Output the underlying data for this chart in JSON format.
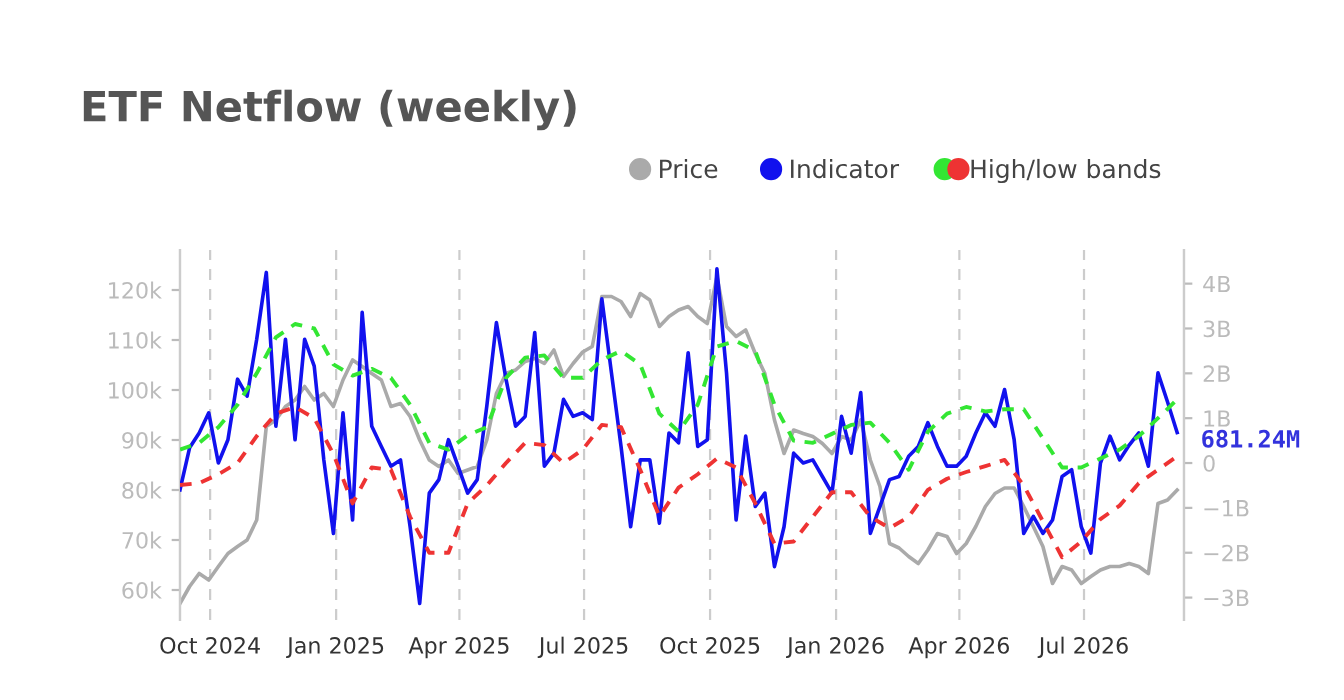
{
  "chart_data": {
    "type": "line",
    "title": "ETF Netflow (weekly)",
    "x": [
      "2024-09-09",
      "2024-09-16",
      "2024-09-23",
      "2024-09-30",
      "2024-10-07",
      "2024-10-14",
      "2024-10-21",
      "2024-10-28",
      "2024-11-04",
      "2024-11-11",
      "2024-11-18",
      "2024-11-25",
      "2024-12-02",
      "2024-12-09",
      "2024-12-16",
      "2024-12-23",
      "2024-12-30",
      "2025-01-06",
      "2025-01-13",
      "2025-01-20",
      "2025-01-27",
      "2025-02-03",
      "2025-02-10",
      "2025-02-17",
      "2025-02-24",
      "2025-03-03",
      "2025-03-10",
      "2025-03-17",
      "2025-03-24",
      "2025-03-31",
      "2025-04-07",
      "2025-04-14",
      "2025-04-21",
      "2025-04-28",
      "2025-05-05",
      "2025-05-12",
      "2025-05-19",
      "2025-05-26",
      "2025-06-02",
      "2025-06-09",
      "2025-06-16",
      "2025-06-23",
      "2025-06-30",
      "2025-07-07",
      "2025-07-14",
      "2025-07-21",
      "2025-07-28",
      "2025-08-04",
      "2025-08-11",
      "2025-08-18",
      "2025-08-25",
      "2025-09-01",
      "2025-09-08",
      "2025-09-15",
      "2025-09-22",
      "2025-09-29",
      "2025-10-06",
      "2025-10-13",
      "2025-10-20",
      "2025-10-27",
      "2025-11-03",
      "2025-11-10",
      "2025-11-17",
      "2025-11-24",
      "2025-12-01",
      "2025-12-08",
      "2025-12-15",
      "2025-12-22",
      "2025-12-29",
      "2026-01-05",
      "2026-01-12",
      "2026-01-19",
      "2026-01-26",
      "2026-02-02",
      "2026-02-09",
      "2026-02-16",
      "2026-02-23",
      "2026-03-02",
      "2026-03-09",
      "2026-03-16",
      "2026-03-23",
      "2026-03-30",
      "2026-04-06",
      "2026-04-13",
      "2026-04-20",
      "2026-04-27",
      "2026-05-04",
      "2026-05-11",
      "2026-05-18",
      "2026-05-25",
      "2026-06-01",
      "2026-06-08",
      "2026-06-15",
      "2026-06-22",
      "2026-06-29",
      "2026-07-06",
      "2026-07-13",
      "2026-07-20",
      "2026-07-27",
      "2026-08-03",
      "2026-08-10",
      "2026-08-17",
      "2026-08-24",
      "2026-08-31",
      "2026-09-07"
    ],
    "series": [
      {
        "name": "Price",
        "color": "#aaaaaa",
        "values": [
          57.3,
          60.7,
          63.3,
          62,
          64.7,
          67.3,
          68.7,
          70,
          74,
          92.7,
          94,
          96.7,
          98,
          100.7,
          98,
          99.3,
          96.7,
          102,
          106,
          104.7,
          103.3,
          102,
          96.7,
          97.3,
          94.7,
          90,
          86,
          84.7,
          86,
          83.3,
          84,
          84.7,
          90,
          99.3,
          103.3,
          104,
          105.7,
          106.3,
          105.3,
          108,
          102.7,
          105.3,
          107.6,
          108.7,
          118.7,
          118.7,
          117.7,
          114.7,
          119.3,
          118,
          112.7,
          114.7,
          116,
          116.7,
          114.7,
          113.3,
          122.7,
          112.7,
          110.7,
          112,
          107.3,
          103.3,
          94,
          87.3,
          92,
          91.3,
          90.7,
          89.3,
          87.3,
          90.7,
          90,
          94,
          86,
          80.7,
          69.3,
          68.4,
          66.7,
          65.3,
          68,
          71.3,
          70.7,
          67.3,
          69.3,
          72.7,
          76.7,
          79.3,
          80.4,
          80.4,
          76.7,
          72.7,
          68.7,
          61.3,
          64.7,
          64,
          61.3,
          62.7,
          64,
          64.7,
          64.7,
          65.3,
          64.7,
          63.3,
          77.3,
          78,
          80
        ]
      },
      {
        "name": "Indicator",
        "color": "#1111ee",
        "axis": "y2",
        "values": [
          -0.6,
          0.34,
          0.67,
          1.12,
          0.0,
          0.52,
          1.87,
          1.49,
          2.76,
          4.25,
          0.82,
          2.76,
          0.52,
          2.76,
          2.16,
          0.07,
          -1.57,
          1.12,
          -1.27,
          3.36,
          0.82,
          0.37,
          -0.07,
          0.07,
          -1.42,
          -3.13,
          -0.67,
          -0.37,
          0.52,
          -0.07,
          -0.67,
          -0.37,
          1.27,
          3.13,
          1.87,
          0.82,
          1.04,
          2.91,
          -0.07,
          0.22,
          1.42,
          1.04,
          1.12,
          0.97,
          3.66,
          2.01,
          0.37,
          -1.42,
          0.07,
          0.07,
          -1.34,
          0.67,
          0.45,
          2.46,
          0.37,
          0.52,
          4.33,
          2.01,
          -1.27,
          0.6,
          -0.97,
          -0.67,
          -2.31,
          -1.42,
          0.22,
          0.0,
          0.07,
          -0.3,
          -0.67,
          1.04,
          0.22,
          1.57,
          -1.57,
          -0.97,
          -0.37,
          -0.3,
          0.15,
          0.37,
          0.9,
          0.37,
          -0.07,
          -0.07,
          0.15,
          0.67,
          1.12,
          0.82,
          1.64,
          0.52,
          -1.57,
          -1.19,
          -1.57,
          -1.27,
          -0.3,
          -0.15,
          -1.42,
          -2.01,
          0.0,
          0.6,
          0.07,
          0.4,
          0.67,
          -0.07,
          2.01,
          1.36,
          0.68
        ]
      },
      {
        "name": "High/low bands",
        "color": "#33e633",
        "axis": "y2",
        "line_style": "dashed",
        "x": [
          "2024-09-09",
          "2024-09-23",
          "2024-10-07",
          "2024-10-21",
          "2024-11-04",
          "2024-11-18",
          "2024-12-02",
          "2024-12-16",
          "2024-12-30",
          "2025-01-13",
          "2025-01-27",
          "2025-02-10",
          "2025-02-24",
          "2025-03-10",
          "2025-03-24",
          "2025-04-07",
          "2025-04-21",
          "2025-05-05",
          "2025-05-19",
          "2025-06-02",
          "2025-06-16",
          "2025-06-30",
          "2025-07-14",
          "2025-07-28",
          "2025-08-11",
          "2025-08-25",
          "2025-09-08",
          "2025-09-22",
          "2025-10-06",
          "2025-10-20",
          "2025-11-03",
          "2025-11-17",
          "2025-12-01",
          "2025-12-15",
          "2025-12-29",
          "2026-01-12",
          "2026-01-26",
          "2026-02-09",
          "2026-02-23",
          "2026-03-09",
          "2026-03-23",
          "2026-04-06",
          "2026-04-20",
          "2026-05-04",
          "2026-05-18",
          "2026-06-01",
          "2026-06-15",
          "2026-06-29",
          "2026-07-13",
          "2026-07-27",
          "2026-08-10",
          "2026-08-24",
          "2026-09-07"
        ],
        "values": [
          0.3,
          0.45,
          0.8,
          1.3,
          2.0,
          2.8,
          3.1,
          3.0,
          2.2,
          1.95,
          2.1,
          1.9,
          1.3,
          0.45,
          0.3,
          0.62,
          0.8,
          1.9,
          2.35,
          2.4,
          1.9,
          1.9,
          2.3,
          2.5,
          2.2,
          1.1,
          0.7,
          1.3,
          2.6,
          2.72,
          2.5,
          1.3,
          0.5,
          0.45,
          0.65,
          0.85,
          0.9,
          0.45,
          -0.15,
          0.7,
          1.1,
          1.25,
          1.15,
          1.2,
          1.2,
          0.55,
          -0.1,
          -0.1,
          0.1,
          0.3,
          0.6,
          1.0,
          1.42
        ]
      },
      {
        "color": "#ee3333",
        "axis": "y2",
        "line_style": "dashed",
        "x": [
          "2024-09-09",
          "2024-09-23",
          "2024-10-07",
          "2024-10-21",
          "2024-11-04",
          "2024-11-18",
          "2024-12-02",
          "2024-12-16",
          "2024-12-30",
          "2025-01-13",
          "2025-01-27",
          "2025-02-10",
          "2025-02-24",
          "2025-03-10",
          "2025-03-24",
          "2025-04-07",
          "2025-04-21",
          "2025-05-05",
          "2025-05-19",
          "2025-06-02",
          "2025-06-16",
          "2025-06-30",
          "2025-07-14",
          "2025-07-28",
          "2025-08-11",
          "2025-08-25",
          "2025-09-08",
          "2025-09-22",
          "2025-10-06",
          "2025-10-20",
          "2025-11-03",
          "2025-11-17",
          "2025-12-01",
          "2025-12-15",
          "2025-12-29",
          "2026-01-12",
          "2026-01-26",
          "2026-02-09",
          "2026-02-23",
          "2026-03-09",
          "2026-03-23",
          "2026-04-06",
          "2026-04-20",
          "2026-05-04",
          "2026-05-18",
          "2026-06-01",
          "2026-06-15",
          "2026-06-29",
          "2026-07-13",
          "2026-07-27",
          "2026-08-10",
          "2026-08-24",
          "2026-09-07"
        ],
        "values": [
          -0.49,
          -0.45,
          -0.25,
          0.0,
          0.6,
          1.1,
          1.25,
          1.0,
          0.2,
          -0.9,
          -0.1,
          -0.15,
          -1.2,
          -2.0,
          -2.0,
          -0.9,
          -0.5,
          0.0,
          0.45,
          0.4,
          0.0,
          0.3,
          0.85,
          0.8,
          -0.15,
          -1.19,
          -0.55,
          -0.25,
          0.1,
          -0.1,
          -0.9,
          -1.8,
          -1.75,
          -1.2,
          -0.65,
          -0.65,
          -1.2,
          -1.45,
          -1.2,
          -0.6,
          -0.35,
          -0.2,
          -0.07,
          0.07,
          -0.5,
          -1.3,
          -2.1,
          -1.75,
          -1.25,
          -0.95,
          -0.45,
          -0.15,
          0.15
        ]
      }
    ],
    "xlim": [
      "2024-09-09",
      "2026-09-12"
    ],
    "xticks": [
      {
        "value": "2024-10-01",
        "label": "Oct 2024"
      },
      {
        "value": "2025-01-01",
        "label": "Jan 2025"
      },
      {
        "value": "2025-04-01",
        "label": "Apr 2025"
      },
      {
        "value": "2025-07-01",
        "label": "Jul 2025"
      },
      {
        "value": "2025-10-01",
        "label": "Oct 2025"
      },
      {
        "value": "2026-01-01",
        "label": "Jan 2026"
      },
      {
        "value": "2026-04-01",
        "label": "Apr 2026"
      },
      {
        "value": "2026-07-01",
        "label": "Jul 2026"
      }
    ],
    "ylim": [
      54,
      128
    ],
    "yticks": [
      {
        "value": 60,
        "label": "60k"
      },
      {
        "value": 70,
        "label": "70k"
      },
      {
        "value": 80,
        "label": "80k"
      },
      {
        "value": 90,
        "label": "90k"
      },
      {
        "value": 100,
        "label": "100k"
      },
      {
        "value": 110,
        "label": "110k"
      },
      {
        "value": 120,
        "label": "120k"
      }
    ],
    "y2lim": [
      -3.5,
      4.75
    ],
    "y2ticks": [
      {
        "value": -3,
        "label": "−3B"
      },
      {
        "value": -2,
        "label": "−2B"
      },
      {
        "value": -1,
        "label": "−1B"
      },
      {
        "value": 0,
        "label": "0"
      },
      {
        "value": 1,
        "label": "1B"
      },
      {
        "value": 2,
        "label": "2B"
      },
      {
        "value": 3,
        "label": "3B"
      },
      {
        "value": 4,
        "label": "4B"
      }
    ],
    "annotations": [
      "681.24M"
    ],
    "grid": "x",
    "legend": "top right"
  }
}
